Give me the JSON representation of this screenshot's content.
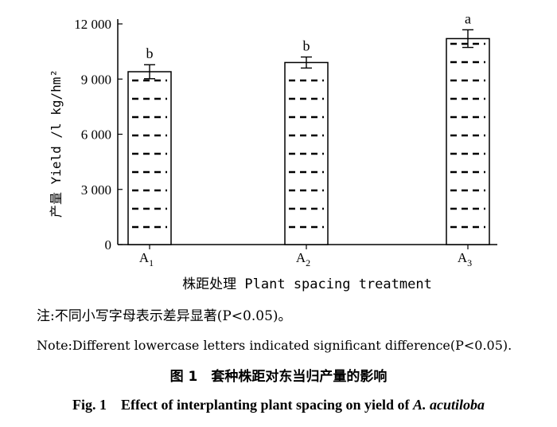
{
  "chart_data": {
    "type": "bar",
    "categories": [
      "A",
      "A",
      "A"
    ],
    "category_subscripts": [
      "1",
      "2",
      "3"
    ],
    "values": [
      9400,
      9900,
      11200
    ],
    "error": [
      380,
      300,
      480
    ],
    "significance_letters": [
      "b",
      "b",
      "a"
    ],
    "ylabel": "产量 Yield /l kg/hm²",
    "xlabel": "株距处理 Plant spacing treatment",
    "ylim": [
      0,
      12000
    ],
    "yticks": [
      "0",
      "3 000",
      "6 000",
      "9 000",
      "12 000"
    ],
    "ytick_values": [
      0,
      3000,
      6000,
      9000,
      12000
    ],
    "bar_fill": "dashed-horizontal",
    "grid": false
  },
  "notes": {
    "cn": "注:不同小写字母表示差异显著(P<0.05)。",
    "en": "Note:Different lowercase letters indicated significant difference(P<0.05)."
  },
  "figure_title": {
    "cn": "图 1　套种株距对东当归产量的影响",
    "en_prefix": "Fig. 1　Effect of interplanting plant spacing on yield of ",
    "en_species": "A. acutiloba"
  }
}
